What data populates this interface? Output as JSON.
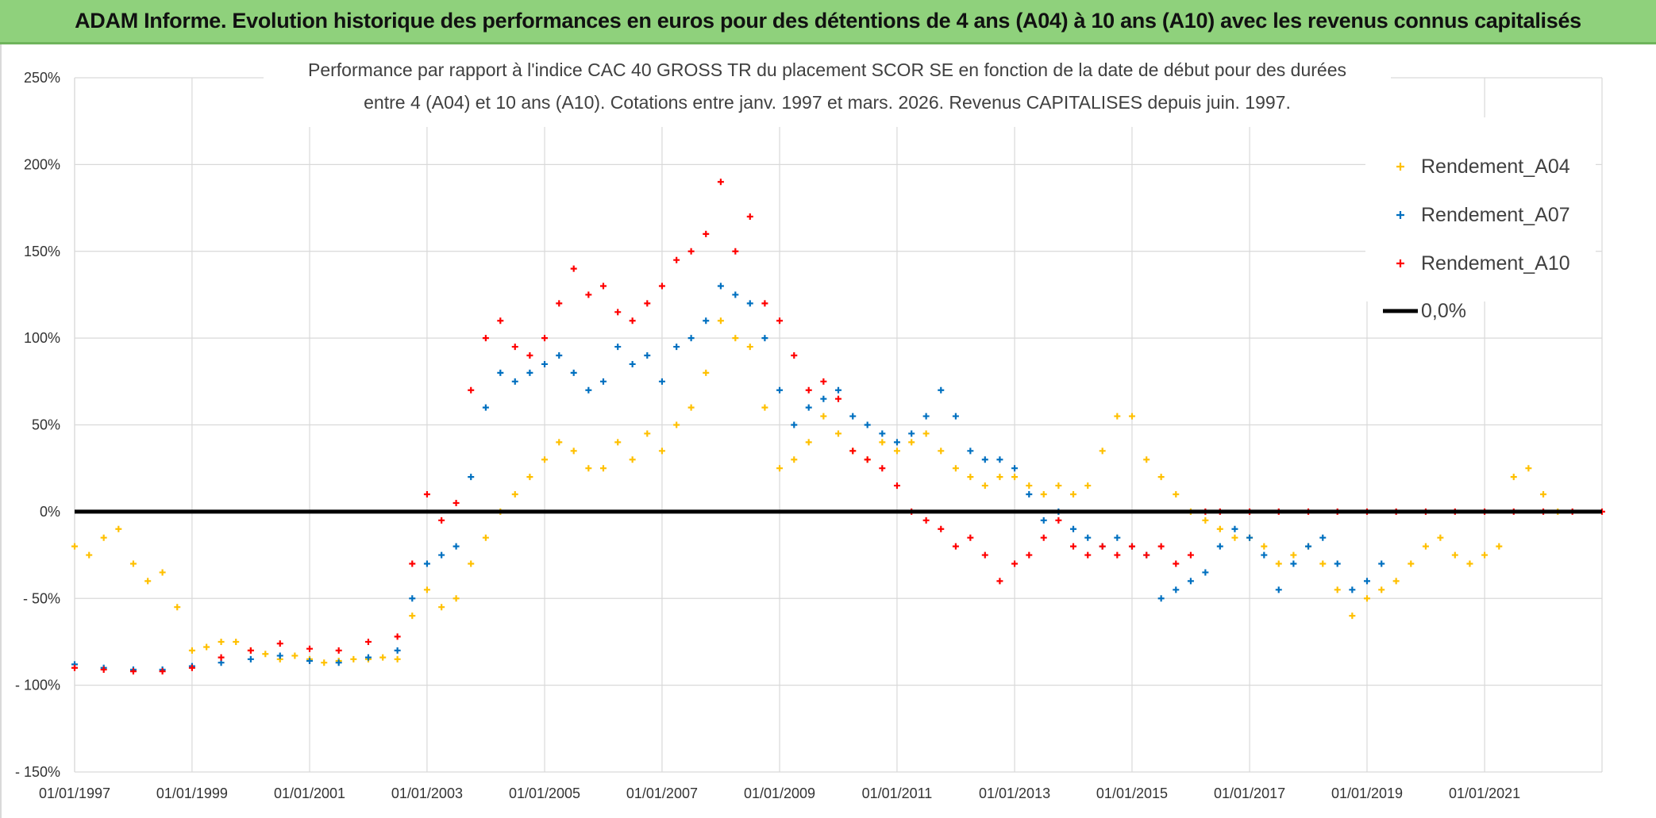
{
  "banner": {
    "title": "ADAM Informe. Evolution historique des performances en euros pour des détentions de 4 ans (A04) à 10 ans (A10) avec les revenus connus capitalisés",
    "background_color": "#8fd17c"
  },
  "chart_data": {
    "type": "scatter",
    "title_lines": [
      "Performance par rapport à l'indice CAC 40 GROSS TR  du placement SCOR SE en fonction de la date de début pour des durées",
      "entre 4 (A04) et 10 ans (A10). Cotations entre janv. 1997 et mars. 2026. Revenus CAPITALISES depuis juin. 1997."
    ],
    "xlabel": "",
    "ylabel": "",
    "x_range": [
      "1997-01-01",
      "2023-01-01"
    ],
    "x_tick_labels": [
      "01/01/1997",
      "01/01/1999",
      "01/01/2001",
      "01/01/2003",
      "01/01/2005",
      "01/01/2007",
      "01/01/2009",
      "01/01/2011",
      "01/01/2013",
      "01/01/2015",
      "01/01/2017",
      "01/01/2019",
      "01/01/2021"
    ],
    "y_range": [
      -150,
      250
    ],
    "y_tick_values": [
      250,
      200,
      150,
      100,
      50,
      0,
      -50,
      -100,
      -150
    ],
    "y_tick_labels": [
      "250%",
      "200%",
      "150%",
      "100%",
      "50%",
      "0%",
      "- 50%",
      "- 100%",
      "- 150%"
    ],
    "grid": true,
    "legend_position": "top-right",
    "series": [
      {
        "name": "Rendement_A04",
        "color": "#ffc000",
        "marker": "plus",
        "points": [
          [
            "1997-01-01",
            -20
          ],
          [
            "1997-04-01",
            -25
          ],
          [
            "1997-07-01",
            -15
          ],
          [
            "1997-10-01",
            -10
          ],
          [
            "1998-01-01",
            -30
          ],
          [
            "1998-04-01",
            -40
          ],
          [
            "1998-07-01",
            -35
          ],
          [
            "1998-10-01",
            -55
          ],
          [
            "1999-01-01",
            -80
          ],
          [
            "1999-04-01",
            -78
          ],
          [
            "1999-07-01",
            -75
          ],
          [
            "1999-10-01",
            -75
          ],
          [
            "2000-01-01",
            -80
          ],
          [
            "2000-04-01",
            -82
          ],
          [
            "2000-07-01",
            -85
          ],
          [
            "2000-10-01",
            -83
          ],
          [
            "2001-01-01",
            -85
          ],
          [
            "2001-04-01",
            -87
          ],
          [
            "2001-07-01",
            -86
          ],
          [
            "2001-10-01",
            -85
          ],
          [
            "2002-01-01",
            -85
          ],
          [
            "2002-04-01",
            -84
          ],
          [
            "2002-07-01",
            -85
          ],
          [
            "2002-10-01",
            -60
          ],
          [
            "2003-01-01",
            -45
          ],
          [
            "2003-04-01",
            -55
          ],
          [
            "2003-07-01",
            -50
          ],
          [
            "2003-10-01",
            -30
          ],
          [
            "2004-01-01",
            -15
          ],
          [
            "2004-04-01",
            0
          ],
          [
            "2004-07-01",
            10
          ],
          [
            "2004-10-01",
            20
          ],
          [
            "2005-01-01",
            30
          ],
          [
            "2005-04-01",
            40
          ],
          [
            "2005-07-01",
            35
          ],
          [
            "2005-10-01",
            25
          ],
          [
            "2006-01-01",
            25
          ],
          [
            "2006-04-01",
            40
          ],
          [
            "2006-07-01",
            30
          ],
          [
            "2006-10-01",
            45
          ],
          [
            "2007-01-01",
            35
          ],
          [
            "2007-04-01",
            50
          ],
          [
            "2007-07-01",
            60
          ],
          [
            "2007-10-01",
            80
          ],
          [
            "2008-01-01",
            110
          ],
          [
            "2008-04-01",
            100
          ],
          [
            "2008-07-01",
            95
          ],
          [
            "2008-10-01",
            60
          ],
          [
            "2009-01-01",
            25
          ],
          [
            "2009-04-01",
            30
          ],
          [
            "2009-07-01",
            40
          ],
          [
            "2009-10-01",
            55
          ],
          [
            "2010-01-01",
            45
          ],
          [
            "2010-04-01",
            35
          ],
          [
            "2010-07-01",
            30
          ],
          [
            "2010-10-01",
            40
          ],
          [
            "2011-01-01",
            35
          ],
          [
            "2011-04-01",
            40
          ],
          [
            "2011-07-01",
            45
          ],
          [
            "2011-10-01",
            35
          ],
          [
            "2012-01-01",
            25
          ],
          [
            "2012-04-01",
            20
          ],
          [
            "2012-07-01",
            15
          ],
          [
            "2012-10-01",
            20
          ],
          [
            "2013-01-01",
            20
          ],
          [
            "2013-04-01",
            15
          ],
          [
            "2013-07-01",
            10
          ],
          [
            "2013-10-01",
            15
          ],
          [
            "2014-01-01",
            10
          ],
          [
            "2014-04-01",
            15
          ],
          [
            "2014-07-01",
            35
          ],
          [
            "2014-10-01",
            55
          ],
          [
            "2015-01-01",
            55
          ],
          [
            "2015-04-01",
            30
          ],
          [
            "2015-07-01",
            20
          ],
          [
            "2015-10-01",
            10
          ],
          [
            "2016-01-01",
            0
          ],
          [
            "2016-04-01",
            -5
          ],
          [
            "2016-07-01",
            -10
          ],
          [
            "2016-10-01",
            -15
          ],
          [
            "2017-01-01",
            -15
          ],
          [
            "2017-04-01",
            -20
          ],
          [
            "2017-07-01",
            -30
          ],
          [
            "2017-10-01",
            -25
          ],
          [
            "2018-01-01",
            -20
          ],
          [
            "2018-04-01",
            -30
          ],
          [
            "2018-07-01",
            -45
          ],
          [
            "2018-10-01",
            -60
          ],
          [
            "2019-01-01",
            -50
          ],
          [
            "2019-04-01",
            -45
          ],
          [
            "2019-07-01",
            -40
          ],
          [
            "2019-10-01",
            -30
          ],
          [
            "2020-01-01",
            -20
          ],
          [
            "2020-04-01",
            -15
          ],
          [
            "2020-07-01",
            -25
          ],
          [
            "2020-10-01",
            -30
          ],
          [
            "2021-01-01",
            -25
          ],
          [
            "2021-04-01",
            -20
          ],
          [
            "2021-07-01",
            20
          ],
          [
            "2021-10-01",
            25
          ],
          [
            "2022-01-01",
            10
          ],
          [
            "2022-04-01",
            0
          ]
        ]
      },
      {
        "name": "Rendement_A07",
        "color": "#0070c0",
        "marker": "plus",
        "points": [
          [
            "1997-01-01",
            -88
          ],
          [
            "1997-07-01",
            -90
          ],
          [
            "1998-01-01",
            -91
          ],
          [
            "1998-07-01",
            -91
          ],
          [
            "1999-01-01",
            -89
          ],
          [
            "1999-07-01",
            -87
          ],
          [
            "2000-01-01",
            -85
          ],
          [
            "2000-07-01",
            -83
          ],
          [
            "2001-01-01",
            -86
          ],
          [
            "2001-07-01",
            -87
          ],
          [
            "2002-01-01",
            -84
          ],
          [
            "2002-07-01",
            -80
          ],
          [
            "2002-10-01",
            -50
          ],
          [
            "2003-01-01",
            -30
          ],
          [
            "2003-04-01",
            -25
          ],
          [
            "2003-07-01",
            -20
          ],
          [
            "2003-10-01",
            20
          ],
          [
            "2004-01-01",
            60
          ],
          [
            "2004-04-01",
            80
          ],
          [
            "2004-07-01",
            75
          ],
          [
            "2004-10-01",
            80
          ],
          [
            "2005-01-01",
            85
          ],
          [
            "2005-04-01",
            90
          ],
          [
            "2005-07-01",
            80
          ],
          [
            "2005-10-01",
            70
          ],
          [
            "2006-01-01",
            75
          ],
          [
            "2006-04-01",
            95
          ],
          [
            "2006-07-01",
            85
          ],
          [
            "2006-10-01",
            90
          ],
          [
            "2007-01-01",
            75
          ],
          [
            "2007-04-01",
            95
          ],
          [
            "2007-07-01",
            100
          ],
          [
            "2007-10-01",
            110
          ],
          [
            "2008-01-01",
            130
          ],
          [
            "2008-04-01",
            125
          ],
          [
            "2008-07-01",
            120
          ],
          [
            "2008-10-01",
            100
          ],
          [
            "2009-01-01",
            70
          ],
          [
            "2009-04-01",
            50
          ],
          [
            "2009-07-01",
            60
          ],
          [
            "2009-10-01",
            65
          ],
          [
            "2010-01-01",
            70
          ],
          [
            "2010-04-01",
            55
          ],
          [
            "2010-07-01",
            50
          ],
          [
            "2010-10-01",
            45
          ],
          [
            "2011-01-01",
            40
          ],
          [
            "2011-04-01",
            45
          ],
          [
            "2011-07-01",
            55
          ],
          [
            "2011-10-01",
            70
          ],
          [
            "2012-01-01",
            55
          ],
          [
            "2012-04-01",
            35
          ],
          [
            "2012-07-01",
            30
          ],
          [
            "2012-10-01",
            30
          ],
          [
            "2013-01-01",
            25
          ],
          [
            "2013-04-01",
            10
          ],
          [
            "2013-07-01",
            -5
          ],
          [
            "2013-10-01",
            0
          ],
          [
            "2014-01-01",
            -10
          ],
          [
            "2014-04-01",
            -15
          ],
          [
            "2014-07-01",
            -20
          ],
          [
            "2014-10-01",
            -15
          ],
          [
            "2015-01-01",
            -20
          ],
          [
            "2015-04-01",
            -25
          ],
          [
            "2015-07-01",
            -50
          ],
          [
            "2015-10-01",
            -45
          ],
          [
            "2016-01-01",
            -40
          ],
          [
            "2016-04-01",
            -35
          ],
          [
            "2016-07-01",
            -20
          ],
          [
            "2016-10-01",
            -10
          ],
          [
            "2017-01-01",
            -15
          ],
          [
            "2017-04-01",
            -25
          ],
          [
            "2017-07-01",
            -45
          ],
          [
            "2017-10-01",
            -30
          ],
          [
            "2018-01-01",
            -20
          ],
          [
            "2018-04-01",
            -15
          ],
          [
            "2018-07-01",
            -30
          ],
          [
            "2018-10-01",
            -45
          ],
          [
            "2019-01-01",
            -40
          ],
          [
            "2019-04-01",
            -30
          ]
        ]
      },
      {
        "name": "Rendement_A10",
        "color": "#ff0000",
        "marker": "plus",
        "points": [
          [
            "1997-01-01",
            -90
          ],
          [
            "1997-07-01",
            -91
          ],
          [
            "1998-01-01",
            -92
          ],
          [
            "1998-07-01",
            -92
          ],
          [
            "1999-01-01",
            -90
          ],
          [
            "1999-07-01",
            -84
          ],
          [
            "2000-01-01",
            -80
          ],
          [
            "2000-07-01",
            -76
          ],
          [
            "2001-01-01",
            -79
          ],
          [
            "2001-07-01",
            -80
          ],
          [
            "2002-01-01",
            -75
          ],
          [
            "2002-07-01",
            -72
          ],
          [
            "2002-10-01",
            -30
          ],
          [
            "2003-01-01",
            10
          ],
          [
            "2003-04-01",
            -5
          ],
          [
            "2003-07-01",
            5
          ],
          [
            "2003-10-01",
            70
          ],
          [
            "2004-01-01",
            100
          ],
          [
            "2004-04-01",
            110
          ],
          [
            "2004-07-01",
            95
          ],
          [
            "2004-10-01",
            90
          ],
          [
            "2005-01-01",
            100
          ],
          [
            "2005-04-01",
            120
          ],
          [
            "2005-07-01",
            140
          ],
          [
            "2005-10-01",
            125
          ],
          [
            "2006-01-01",
            130
          ],
          [
            "2006-04-01",
            115
          ],
          [
            "2006-07-01",
            110
          ],
          [
            "2006-10-01",
            120
          ],
          [
            "2007-01-01",
            130
          ],
          [
            "2007-04-01",
            145
          ],
          [
            "2007-07-01",
            150
          ],
          [
            "2007-10-01",
            160
          ],
          [
            "2008-01-01",
            190
          ],
          [
            "2008-04-01",
            150
          ],
          [
            "2008-07-01",
            170
          ],
          [
            "2008-10-01",
            120
          ],
          [
            "2009-01-01",
            110
          ],
          [
            "2009-04-01",
            90
          ],
          [
            "2009-07-01",
            70
          ],
          [
            "2009-10-01",
            75
          ],
          [
            "2010-01-01",
            65
          ],
          [
            "2010-04-01",
            35
          ],
          [
            "2010-07-01",
            30
          ],
          [
            "2010-10-01",
            25
          ],
          [
            "2011-01-01",
            15
          ],
          [
            "2011-04-01",
            0
          ],
          [
            "2011-07-01",
            -5
          ],
          [
            "2011-10-01",
            -10
          ],
          [
            "2012-01-01",
            -20
          ],
          [
            "2012-04-01",
            -15
          ],
          [
            "2012-07-01",
            -25
          ],
          [
            "2012-10-01",
            -40
          ],
          [
            "2013-01-01",
            -30
          ],
          [
            "2013-04-01",
            -25
          ],
          [
            "2013-07-01",
            -15
          ],
          [
            "2013-10-01",
            -5
          ],
          [
            "2014-01-01",
            -20
          ],
          [
            "2014-04-01",
            -25
          ],
          [
            "2014-07-01",
            -20
          ],
          [
            "2014-10-01",
            -25
          ],
          [
            "2015-01-01",
            -20
          ],
          [
            "2015-04-01",
            -25
          ],
          [
            "2015-07-01",
            -20
          ],
          [
            "2015-10-01",
            -30
          ],
          [
            "2016-01-01",
            -25
          ],
          [
            "2016-04-01",
            0
          ],
          [
            "2016-07-01",
            0
          ],
          [
            "2017-01-01",
            0
          ],
          [
            "2017-07-01",
            0
          ],
          [
            "2018-01-01",
            0
          ],
          [
            "2018-07-01",
            0
          ],
          [
            "2019-01-01",
            0
          ],
          [
            "2019-07-01",
            0
          ],
          [
            "2020-01-01",
            0
          ],
          [
            "2020-07-01",
            0
          ],
          [
            "2021-01-01",
            0
          ],
          [
            "2021-07-01",
            0
          ],
          [
            "2022-01-01",
            0
          ],
          [
            "2022-07-01",
            0
          ],
          [
            "2023-01-01",
            0
          ]
        ]
      }
    ],
    "reference_line": {
      "name": "0,0%",
      "value": 0,
      "color": "#000000"
    }
  }
}
